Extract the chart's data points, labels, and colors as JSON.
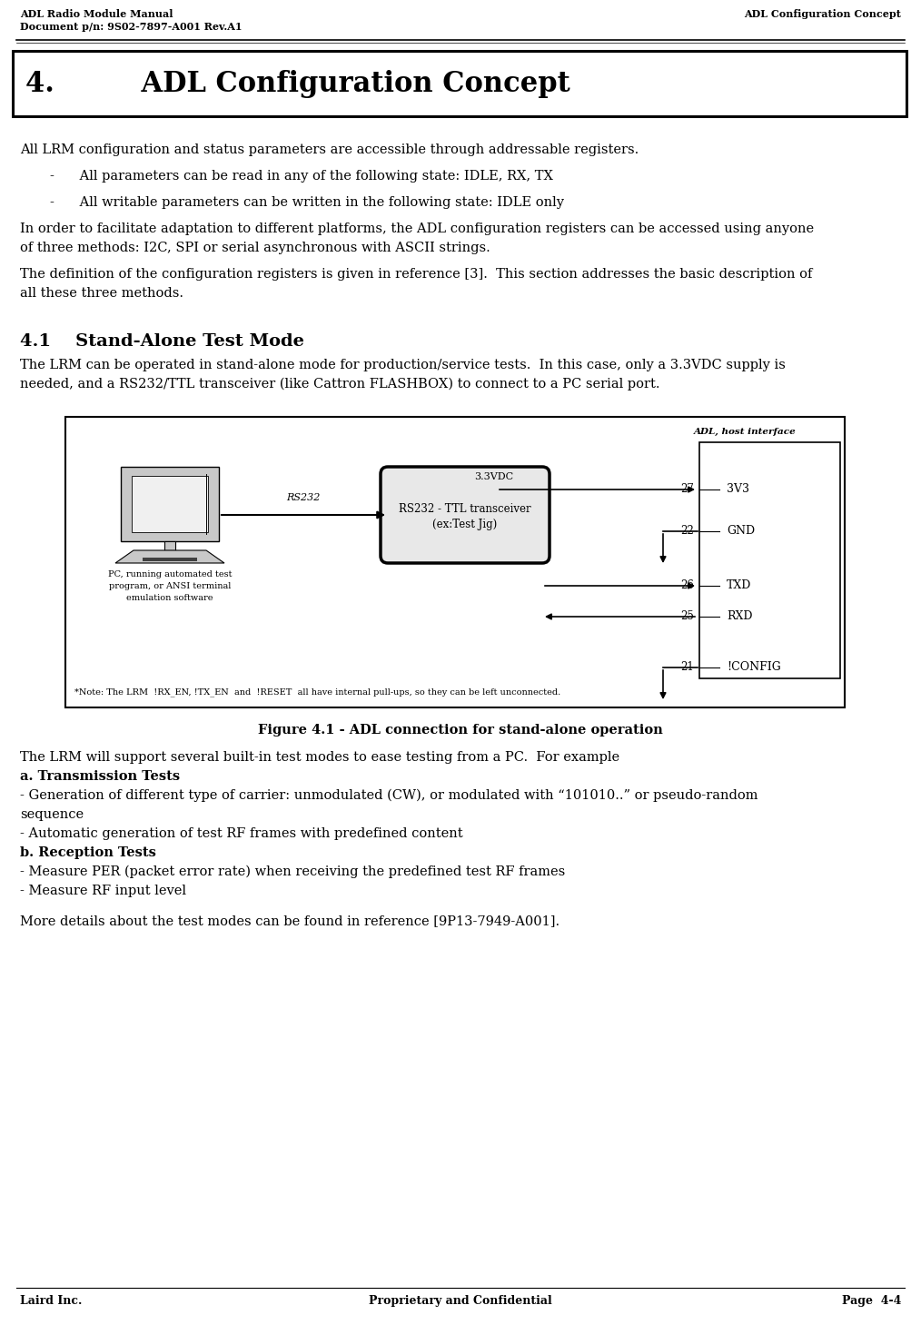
{
  "header_left_line1": "ADL Radio Module Manual",
  "header_left_line2": "Document p/n: 9S02-7897-A001 Rev.A1",
  "header_right": "ADL Configuration Concept",
  "footer_left": "Laird Inc.",
  "footer_center": "Proprietary and Confidential",
  "footer_right": "Page  4-4",
  "chapter_title": "4.         ADL Configuration Concept",
  "body_line1": "All LRM configuration and status parameters are accessible through addressable registers.",
  "body_bullet1": "-      All parameters can be read in any of the following state: IDLE, RX, TX",
  "body_bullet2": "-      All writable parameters can be written in the following state: IDLE only",
  "body_para2_l1": "In order to facilitate adaptation to different platforms, the ADL configuration registers can be accessed using anyone",
  "body_para2_l2": "of three methods: I2C, SPI or serial asynchronous with ASCII strings.",
  "body_para3_l1": "The definition of the configuration registers is given in reference [3].  This section addresses the basic description of",
  "body_para3_l2": "all these three methods.",
  "section_title": "4.1    Stand-Alone Test Mode",
  "section_text_1": "The LRM can be operated in stand-alone mode for production/service tests.  In this case, only a 3.3VDC supply is",
  "section_text_2": "needed, and a RS232/TTL transceiver (like Cattron FLASHBOX) to connect to a PC serial port.",
  "figure_caption": "Figure 4.1 - ADL connection for stand-alone operation",
  "note_text": "*Note: The LRM  !RX_EN, !TX_EN  and  !RESET  all have internal pull-ups, so they can be left unconnected.",
  "after_fig_line1": "The LRM will support several built-in test modes to ease testing from a PC.  For example",
  "after_fig_a": "a. Transmission Tests",
  "after_fig_a1": "- Generation of different type of carrier: unmodulated (CW), or modulated with “101010..” or pseudo-random",
  "after_fig_a1b": "sequence",
  "after_fig_a2": "- Automatic generation of test RF frames with predefined content",
  "after_fig_b": "b. Reception Tests",
  "after_fig_b1": "- Measure PER (packet error rate) when receiving the predefined test RF frames",
  "after_fig_b2": "- Measure RF input level",
  "after_fig_end": "More details about the test modes can be found in reference [9P13-7949-A001].",
  "bg_color": "#ffffff",
  "text_color": "#000000"
}
